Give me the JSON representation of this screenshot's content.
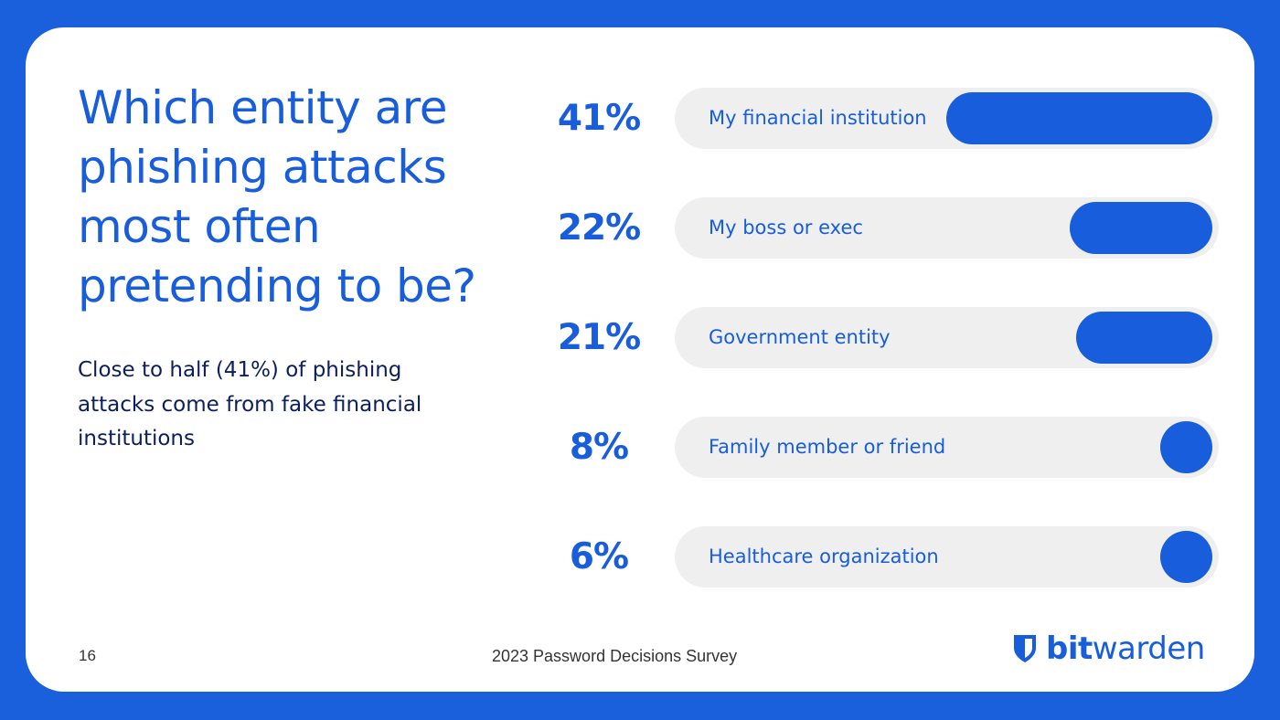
{
  "slide": {
    "title": "Which entity are phishing attacks most often pretending to be?",
    "subtitle": "Close to half (41%) of phishing attacks come from fake financial institutions",
    "page_number": "16",
    "footer_text": "2023 Password Decisions Survey",
    "logo": {
      "icon": "shield-icon",
      "bold": "bit",
      "light": "warden"
    },
    "colors": {
      "brand_blue": "#175ddc",
      "background_blue": "#1a5fdb",
      "track_gray": "#efefef",
      "subtitle_navy": "#0c1e5c"
    }
  },
  "rows": [
    {
      "pct": "41%",
      "label": "My financial institution"
    },
    {
      "pct": "22%",
      "label": "My boss or exec"
    },
    {
      "pct": "21%",
      "label": "Government entity"
    },
    {
      "pct": "8%",
      "label": "Family member or friend"
    },
    {
      "pct": "6%",
      "label": "Healthcare organization"
    }
  ],
  "chart_data": {
    "type": "bar",
    "orientation": "horizontal",
    "title": "Which entity are phishing attacks most often pretending to be?",
    "categories": [
      "My financial institution",
      "My boss or exec",
      "Government entity",
      "Family member or friend",
      "Healthcare organization"
    ],
    "values": [
      41,
      22,
      21,
      8,
      6
    ],
    "unit": "%",
    "xlabel": "",
    "ylabel": "",
    "grid": false,
    "legend": null
  }
}
